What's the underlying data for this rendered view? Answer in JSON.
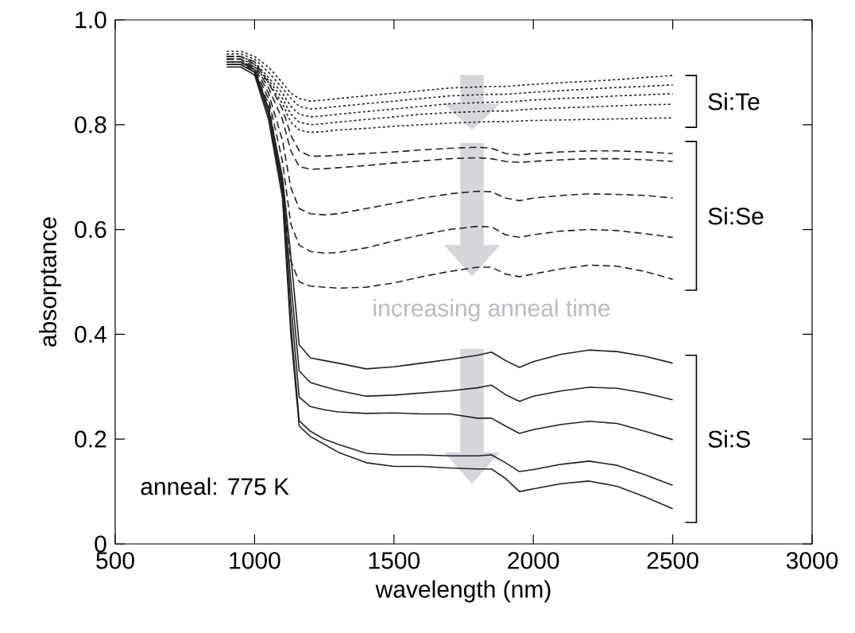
{
  "chart_data": {
    "type": "line",
    "xlabel": "wavelength (nm)",
    "ylabel": "absorptance",
    "x": [
      900,
      950,
      1000,
      1050,
      1100,
      1130,
      1160,
      1200,
      1250,
      1300,
      1400,
      1500,
      1600,
      1700,
      1800,
      1850,
      1900,
      1950,
      2000,
      2100,
      2200,
      2300,
      2400,
      2500
    ],
    "series": [
      {
        "color": "#222222",
        "line_style": "dotted",
        "values": [
          0.94,
          0.94,
          0.93,
          0.91,
          0.88,
          0.86,
          0.85,
          0.845,
          0.847,
          0.85,
          0.855,
          0.86,
          0.865,
          0.87,
          0.872,
          0.873,
          0.873,
          0.875,
          0.877,
          0.88,
          0.883,
          0.886,
          0.89,
          0.894
        ]
      },
      {
        "color": "#222222",
        "line_style": "dotted",
        "values": [
          0.935,
          0.935,
          0.925,
          0.9,
          0.87,
          0.85,
          0.835,
          0.83,
          0.832,
          0.835,
          0.84,
          0.845,
          0.85,
          0.855,
          0.857,
          0.858,
          0.858,
          0.86,
          0.862,
          0.865,
          0.868,
          0.871,
          0.873,
          0.876
        ]
      },
      {
        "color": "#222222",
        "line_style": "dotted",
        "values": [
          0.93,
          0.93,
          0.92,
          0.89,
          0.86,
          0.835,
          0.82,
          0.815,
          0.817,
          0.82,
          0.825,
          0.83,
          0.835,
          0.84,
          0.842,
          0.843,
          0.843,
          0.845,
          0.847,
          0.85,
          0.852,
          0.855,
          0.857,
          0.859
        ]
      },
      {
        "color": "#222222",
        "line_style": "dotted",
        "values": [
          0.925,
          0.925,
          0.915,
          0.885,
          0.85,
          0.82,
          0.805,
          0.8,
          0.802,
          0.805,
          0.81,
          0.815,
          0.82,
          0.823,
          0.825,
          0.826,
          0.826,
          0.828,
          0.83,
          0.832,
          0.834,
          0.836,
          0.838,
          0.839
        ]
      },
      {
        "color": "#222222",
        "line_style": "dotted",
        "values": [
          0.92,
          0.92,
          0.91,
          0.88,
          0.84,
          0.805,
          0.79,
          0.785,
          0.787,
          0.79,
          0.793,
          0.797,
          0.8,
          0.803,
          0.805,
          0.806,
          0.806,
          0.807,
          0.808,
          0.809,
          0.81,
          0.811,
          0.812,
          0.813
        ]
      },
      {
        "color": "#222222",
        "line_style": "dashed",
        "values": [
          0.93,
          0.93,
          0.92,
          0.88,
          0.83,
          0.78,
          0.75,
          0.74,
          0.74,
          0.742,
          0.745,
          0.748,
          0.752,
          0.755,
          0.757,
          0.755,
          0.745,
          0.742,
          0.745,
          0.748,
          0.75,
          0.75,
          0.748,
          0.745
        ]
      },
      {
        "color": "#222222",
        "line_style": "dashed",
        "values": [
          0.93,
          0.93,
          0.915,
          0.87,
          0.81,
          0.75,
          0.72,
          0.715,
          0.716,
          0.718,
          0.722,
          0.727,
          0.731,
          0.735,
          0.737,
          0.735,
          0.73,
          0.728,
          0.73,
          0.733,
          0.735,
          0.735,
          0.733,
          0.73
        ]
      },
      {
        "color": "#222222",
        "line_style": "dashed",
        "values": [
          0.925,
          0.925,
          0.91,
          0.86,
          0.77,
          0.68,
          0.64,
          0.63,
          0.628,
          0.63,
          0.64,
          0.65,
          0.66,
          0.668,
          0.673,
          0.672,
          0.66,
          0.655,
          0.66,
          0.665,
          0.668,
          0.667,
          0.665,
          0.66
        ]
      },
      {
        "color": "#222222",
        "line_style": "dashed",
        "values": [
          0.925,
          0.925,
          0.905,
          0.85,
          0.73,
          0.61,
          0.57,
          0.558,
          0.555,
          0.556,
          0.565,
          0.578,
          0.59,
          0.6,
          0.606,
          0.605,
          0.59,
          0.585,
          0.59,
          0.597,
          0.6,
          0.598,
          0.592,
          0.585
        ]
      },
      {
        "color": "#222222",
        "line_style": "dashed",
        "values": [
          0.92,
          0.92,
          0.9,
          0.84,
          0.69,
          0.54,
          0.5,
          0.492,
          0.49,
          0.488,
          0.49,
          0.498,
          0.51,
          0.52,
          0.528,
          0.528,
          0.515,
          0.51,
          0.515,
          0.525,
          0.532,
          0.53,
          0.52,
          0.505
        ]
      },
      {
        "color": "#222222",
        "line_style": "solid",
        "values": [
          0.92,
          0.92,
          0.905,
          0.83,
          0.7,
          0.55,
          0.38,
          0.355,
          0.35,
          0.345,
          0.334,
          0.338,
          0.345,
          0.352,
          0.36,
          0.366,
          0.35,
          0.337,
          0.348,
          0.362,
          0.37,
          0.367,
          0.358,
          0.345
        ]
      },
      {
        "color": "#222222",
        "line_style": "solid",
        "values": [
          0.92,
          0.92,
          0.905,
          0.83,
          0.69,
          0.5,
          0.33,
          0.308,
          0.3,
          0.293,
          0.282,
          0.284,
          0.288,
          0.292,
          0.298,
          0.303,
          0.285,
          0.272,
          0.282,
          0.292,
          0.299,
          0.297,
          0.288,
          0.275
        ]
      },
      {
        "color": "#222222",
        "line_style": "solid",
        "values": [
          0.915,
          0.915,
          0.9,
          0.82,
          0.68,
          0.46,
          0.28,
          0.262,
          0.256,
          0.252,
          0.249,
          0.25,
          0.248,
          0.248,
          0.24,
          0.24,
          0.225,
          0.211,
          0.218,
          0.228,
          0.234,
          0.23,
          0.215,
          0.199
        ]
      },
      {
        "color": "#222222",
        "line_style": "solid",
        "values": [
          0.915,
          0.915,
          0.9,
          0.82,
          0.67,
          0.42,
          0.235,
          0.215,
          0.2,
          0.19,
          0.173,
          0.17,
          0.17,
          0.168,
          0.168,
          0.17,
          0.155,
          0.138,
          0.142,
          0.152,
          0.158,
          0.15,
          0.132,
          0.112
        ]
      },
      {
        "color": "#222222",
        "line_style": "solid",
        "values": [
          0.91,
          0.91,
          0.895,
          0.81,
          0.66,
          0.4,
          0.225,
          0.205,
          0.19,
          0.175,
          0.155,
          0.148,
          0.148,
          0.145,
          0.143,
          0.143,
          0.125,
          0.1,
          0.105,
          0.115,
          0.12,
          0.11,
          0.09,
          0.067
        ]
      }
    ],
    "xlim": [
      500,
      3000
    ],
    "ylim": [
      0,
      1.0
    ],
    "xticks": [
      500,
      1000,
      1500,
      2000,
      2500,
      3000
    ],
    "yticks": [
      0,
      0.2,
      0.4,
      0.6,
      0.8,
      {
        "value": 1.0,
        "label": "1.0"
      }
    ],
    "annotations": [
      "Si:Te",
      "Si:Se",
      "Si:S",
      "increasing anneal time",
      "anneal: 775 K"
    ]
  }
}
